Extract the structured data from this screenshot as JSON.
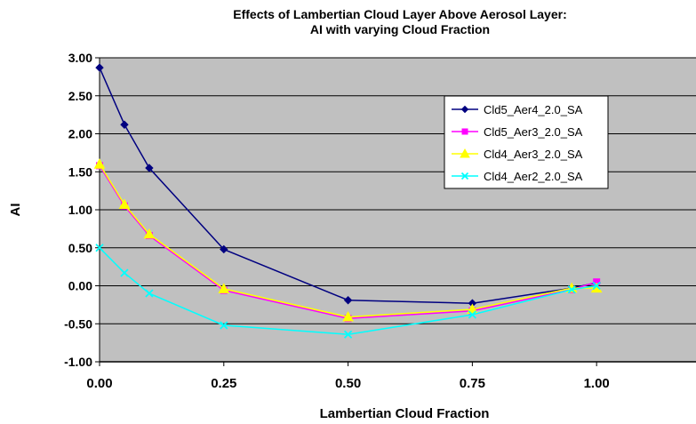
{
  "chart_data": {
    "type": "line",
    "title": [
      "Effects of Lambertian Cloud Layer Above Aerosol Layer:",
      "AI with varying Cloud Fraction"
    ],
    "xlabel": "Lambertian Cloud Fraction",
    "ylabel": "AI",
    "xlim": [
      0,
      1.2
    ],
    "ylim": [
      -1.0,
      3.0
    ],
    "xticks": [
      0,
      0.25,
      0.5,
      0.75,
      1.0
    ],
    "xtick_labels": [
      "0.00",
      "0.25",
      "0.50",
      "0.75",
      "1.00"
    ],
    "yticks": [
      -1.0,
      -0.5,
      0.0,
      0.5,
      1.0,
      1.5,
      2.0,
      2.5,
      3.0
    ],
    "ytick_labels": [
      "-1.00",
      "-0.50",
      "0.00",
      "0.50",
      "1.00",
      "1.50",
      "2.00",
      "2.50",
      "3.00"
    ],
    "grid": "horizontal",
    "plot_background": "#c0c0c0",
    "legend_position": "top-right",
    "series": [
      {
        "name": "Cld5_Aer4_2.0_SA",
        "color": "#000080",
        "marker": "diamond",
        "x": [
          0,
          0.05,
          0.1,
          0.25,
          0.5,
          0.75,
          0.95,
          1.0
        ],
        "y": [
          2.87,
          2.12,
          1.55,
          0.48,
          -0.19,
          -0.23,
          -0.03,
          0.04
        ]
      },
      {
        "name": "Cld5_Aer3_2.0_SA",
        "color": "#ff00ff",
        "marker": "square",
        "x": [
          0,
          0.05,
          0.1,
          0.25,
          0.5,
          0.75,
          0.95,
          1.0
        ],
        "y": [
          1.58,
          1.05,
          0.66,
          -0.06,
          -0.43,
          -0.33,
          -0.05,
          0.05
        ]
      },
      {
        "name": "Cld4_Aer3_2.0_SA",
        "color": "#ffff00",
        "marker": "triangle",
        "x": [
          0,
          0.05,
          0.1,
          0.25,
          0.5,
          0.75,
          0.95,
          1.0
        ],
        "y": [
          1.6,
          1.07,
          0.68,
          -0.04,
          -0.41,
          -0.31,
          -0.03,
          -0.03
        ]
      },
      {
        "name": "Cld4_Aer2_2.0_SA",
        "color": "#00ffff",
        "marker": "x",
        "x": [
          0,
          0.05,
          0.1,
          0.25,
          0.5,
          0.75,
          0.95,
          1.0
        ],
        "y": [
          0.5,
          0.17,
          -0.1,
          -0.52,
          -0.64,
          -0.38,
          -0.05,
          0.0
        ]
      }
    ]
  }
}
